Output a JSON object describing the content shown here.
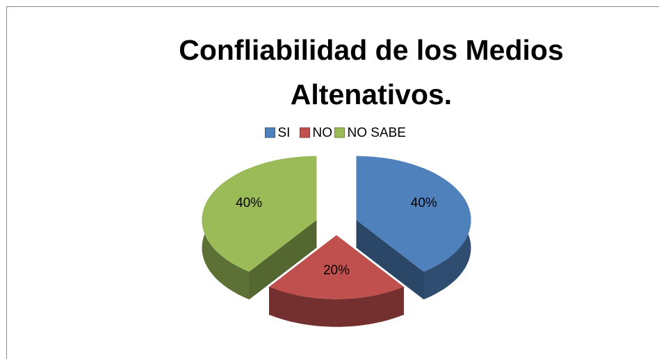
{
  "chart_data": {
    "type": "pie3d",
    "title": "Confliabilidad de los Medios Altenativos.",
    "categories": [
      "SI",
      "NO",
      "NO SABE"
    ],
    "values": [
      40,
      20,
      40
    ],
    "value_labels": [
      "40%",
      "20%",
      "40%"
    ],
    "colors": [
      "#4f81bd",
      "#c0504d",
      "#9bbb59"
    ],
    "legend": "top"
  }
}
